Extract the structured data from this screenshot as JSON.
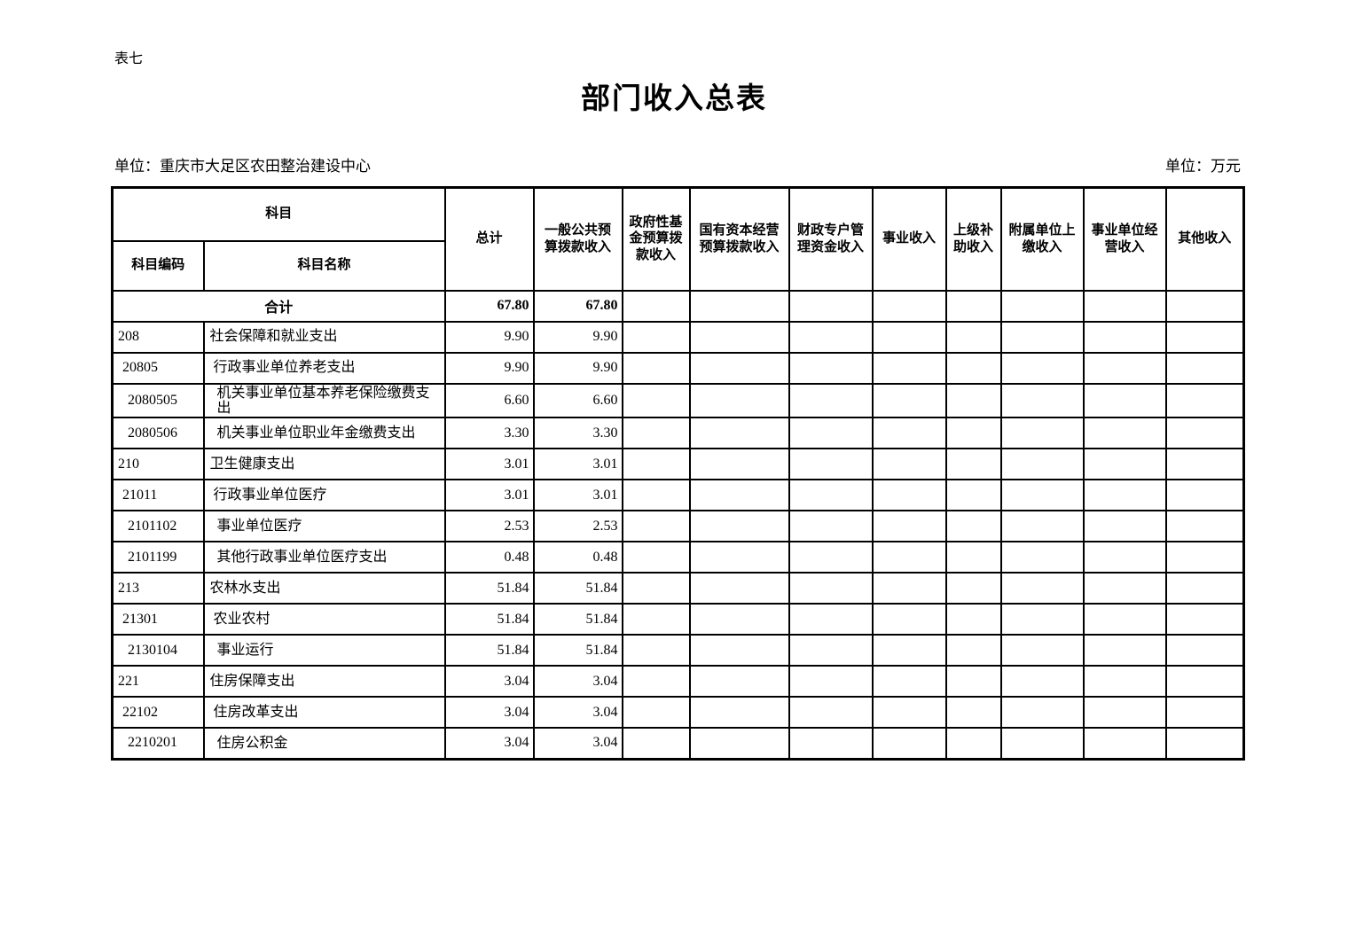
{
  "page": {
    "table_label": "表七",
    "title": "部门收入总表",
    "org_unit": "单位：重庆市大足区农田整治建设中心",
    "currency_unit": "单位：万元",
    "text_color": "#000000",
    "background_color": "#ffffff"
  },
  "table": {
    "header": {
      "subject_group": "科目",
      "subject_code": "科目编码",
      "subject_name": "科目名称",
      "columns": [
        "总计",
        "一般公共预算拨款收入",
        "政府性基金预算拨款收入",
        "国有资本经营预算拨款收入",
        "财政专户管理资金收入",
        "事业收入",
        "上级补助收入",
        "附属单位上缴收入",
        "事业单位经营收入",
        "其他收入"
      ]
    },
    "total_row": {
      "label": "合计",
      "values": [
        "67.80",
        "67.80",
        "",
        "",
        "",
        "",
        "",
        "",
        "",
        ""
      ]
    },
    "rows": [
      {
        "code": "208",
        "name": "社会保障和就业支出",
        "level": 1,
        "values": [
          "9.90",
          "9.90",
          "",
          "",
          "",
          "",
          "",
          "",
          "",
          ""
        ]
      },
      {
        "code": "20805",
        "name": "行政事业单位养老支出",
        "level": 2,
        "values": [
          "9.90",
          "9.90",
          "",
          "",
          "",
          "",
          "",
          "",
          "",
          ""
        ]
      },
      {
        "code": "2080505",
        "name": "机关事业单位基本养老保险缴费支出",
        "level": 3,
        "values": [
          "6.60",
          "6.60",
          "",
          "",
          "",
          "",
          "",
          "",
          "",
          ""
        ]
      },
      {
        "code": "2080506",
        "name": "机关事业单位职业年金缴费支出",
        "level": 3,
        "values": [
          "3.30",
          "3.30",
          "",
          "",
          "",
          "",
          "",
          "",
          "",
          ""
        ]
      },
      {
        "code": "210",
        "name": "卫生健康支出",
        "level": 1,
        "values": [
          "3.01",
          "3.01",
          "",
          "",
          "",
          "",
          "",
          "",
          "",
          ""
        ]
      },
      {
        "code": "21011",
        "name": "行政事业单位医疗",
        "level": 2,
        "values": [
          "3.01",
          "3.01",
          "",
          "",
          "",
          "",
          "",
          "",
          "",
          ""
        ]
      },
      {
        "code": "2101102",
        "name": "事业单位医疗",
        "level": 3,
        "values": [
          "2.53",
          "2.53",
          "",
          "",
          "",
          "",
          "",
          "",
          "",
          ""
        ]
      },
      {
        "code": "2101199",
        "name": "其他行政事业单位医疗支出",
        "level": 3,
        "values": [
          "0.48",
          "0.48",
          "",
          "",
          "",
          "",
          "",
          "",
          "",
          ""
        ]
      },
      {
        "code": "213",
        "name": "农林水支出",
        "level": 1,
        "values": [
          "51.84",
          "51.84",
          "",
          "",
          "",
          "",
          "",
          "",
          "",
          ""
        ]
      },
      {
        "code": "21301",
        "name": "农业农村",
        "level": 2,
        "values": [
          "51.84",
          "51.84",
          "",
          "",
          "",
          "",
          "",
          "",
          "",
          ""
        ]
      },
      {
        "code": "2130104",
        "name": "事业运行",
        "level": 3,
        "values": [
          "51.84",
          "51.84",
          "",
          "",
          "",
          "",
          "",
          "",
          "",
          ""
        ]
      },
      {
        "code": "221",
        "name": "住房保障支出",
        "level": 1,
        "values": [
          "3.04",
          "3.04",
          "",
          "",
          "",
          "",
          "",
          "",
          "",
          ""
        ]
      },
      {
        "code": "22102",
        "name": "住房改革支出",
        "level": 2,
        "values": [
          "3.04",
          "3.04",
          "",
          "",
          "",
          "",
          "",
          "",
          "",
          ""
        ]
      },
      {
        "code": "2210201",
        "name": "住房公积金",
        "level": 3,
        "values": [
          "3.04",
          "3.04",
          "",
          "",
          "",
          "",
          "",
          "",
          "",
          ""
        ]
      }
    ]
  }
}
